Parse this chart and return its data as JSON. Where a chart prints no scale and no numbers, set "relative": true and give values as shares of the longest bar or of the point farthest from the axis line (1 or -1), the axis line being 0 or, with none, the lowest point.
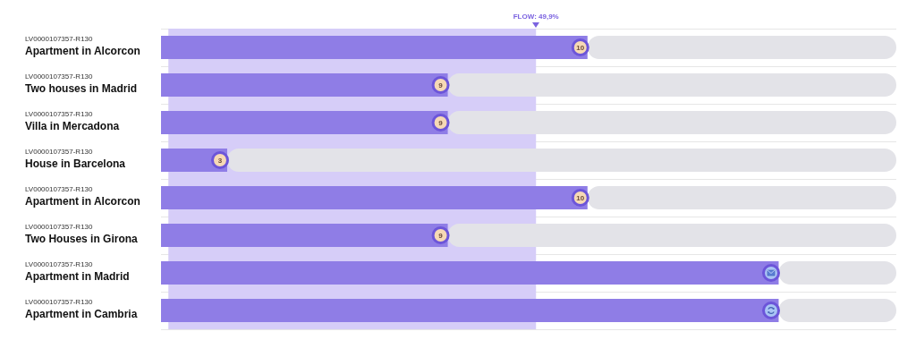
{
  "chart_data": {
    "type": "bar",
    "orientation": "horizontal",
    "stacked": true,
    "relative": true,
    "categories": [
      "LV0000107357-R130\nApartment in Alcorcon",
      "LV0000107357-R130\nTwo houses in Madrid",
      "LV0000107357-R130\nVilla in Mercadona",
      "LV0000107357-R130\nHouse in Barcelona",
      "LV0000107357-R130\nApartment in Alcorcon",
      "LV0000107357-R130\nTwo Houses in Girona",
      "LV0000107357-R130\nApartment in Madrid",
      "LV0000107357-R130\nApartment in Cambria"
    ],
    "series": [
      {
        "color": "#8f7de6",
        "values": [
          0.58,
          0.39,
          0.39,
          0.09,
          0.58,
          0.39,
          0.84,
          0.84
        ]
      },
      {
        "color": "#e3e3e8",
        "values": [
          0.42,
          0.61,
          0.61,
          0.91,
          0.42,
          0.61,
          0.16,
          0.16
        ]
      }
    ],
    "annotations": [
      "10",
      "9",
      "9",
      "3",
      "10",
      "9"
    ],
    "bands": [
      {
        "axis": "x",
        "from": 0.01,
        "to": 0.51,
        "color": "#d6cdf8",
        "label": "FLOW: 49,9%"
      }
    ],
    "grid": "y",
    "legend": false
  }
}
